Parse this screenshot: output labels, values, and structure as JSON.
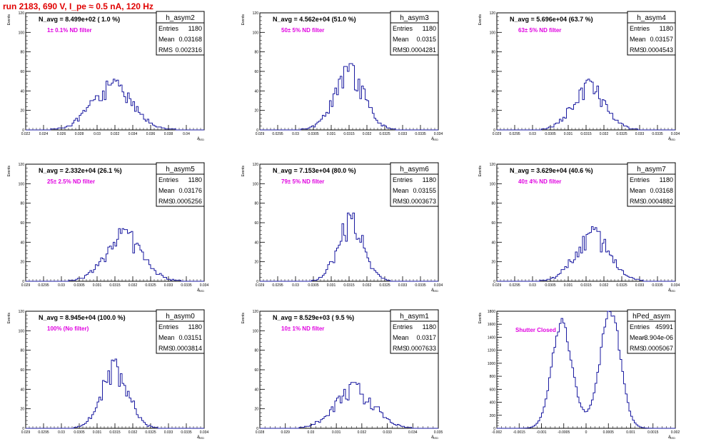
{
  "header": {
    "title": "run 2183,   690 V, I_pe ≈ 0.5 nA, 120 Hz"
  },
  "chart_data": [
    {
      "type": "bar",
      "hist": "h_asym2",
      "navg": "N_avg = 8.499e+02 ( 1.0 %)",
      "note": "1± 0.1% ND filter",
      "stats": [
        [
          "Entries",
          "1180"
        ],
        [
          "Mean",
          "0.03168"
        ],
        [
          "RMS",
          "0.002316"
        ]
      ],
      "xlim": [
        0.022,
        0.042
      ],
      "ylim": [
        0,
        120
      ],
      "mean": 0.03168,
      "rms": 0.002316,
      "peak": 52,
      "xticks": [
        "0.022",
        "0.024",
        "0.026",
        "0.028",
        "0.03",
        "0.032",
        "0.034",
        "0.036",
        "0.038",
        "0.04"
      ],
      "yticks": [
        "0",
        "20",
        "40",
        "60",
        "80",
        "100",
        "120"
      ],
      "ylabel": "Events",
      "xlabel": "A_LED"
    },
    {
      "type": "bar",
      "hist": "h_asym3",
      "navg": "N_avg = 4.562e+04 (51.0 %)",
      "note": "50± 5% ND filter",
      "stats": [
        [
          "Entries",
          "1180"
        ],
        [
          "Mean",
          "0.0315"
        ],
        [
          "RMS",
          "0.0004281"
        ]
      ],
      "xlim": [
        0.029,
        0.034
      ],
      "ylim": [
        0,
        120
      ],
      "mean": 0.0315,
      "rms": 0.0004281,
      "peak": 69,
      "xticks": [
        "0.029",
        "0.0295",
        "0.03",
        "0.0305",
        "0.031",
        "0.0315",
        "0.032",
        "0.0325",
        "0.033",
        "0.0335",
        "0.034"
      ],
      "yticks": [
        "0",
        "20",
        "40",
        "60",
        "80",
        "100",
        "120"
      ],
      "ylabel": "Events",
      "xlabel": "A_LED"
    },
    {
      "type": "bar",
      "hist": "h_asym4",
      "navg": "N_avg = 5.696e+04 (63.7 %)",
      "note": "63± 5% ND filter",
      "stats": [
        [
          "Entries",
          "1180"
        ],
        [
          "Mean",
          "0.03157"
        ],
        [
          "RMS",
          "0.0004543"
        ]
      ],
      "xlim": [
        0.029,
        0.034
      ],
      "ylim": [
        0,
        120
      ],
      "mean": 0.03157,
      "rms": 0.0004543,
      "peak": 53,
      "xticks": [
        "0.029",
        "0.0295",
        "0.03",
        "0.0305",
        "0.031",
        "0.0315",
        "0.032",
        "0.0325",
        "0.033",
        "0.0335",
        "0.034"
      ],
      "yticks": [
        "0",
        "20",
        "40",
        "60",
        "80",
        "100",
        "120"
      ],
      "ylabel": "Events",
      "xlabel": "A_LED"
    },
    {
      "type": "bar",
      "hist": "h_asym5",
      "navg": "N_avg = 2.332e+04 (26.1 %)",
      "note": "25± 2.5% ND filter",
      "stats": [
        [
          "Entries",
          "1180"
        ],
        [
          "Mean",
          "0.03176"
        ],
        [
          "RMS",
          "0.0005256"
        ]
      ],
      "xlim": [
        0.029,
        0.034
      ],
      "ylim": [
        0,
        120
      ],
      "mean": 0.03176,
      "rms": 0.0005256,
      "peak": 55,
      "xticks": [
        "0.029",
        "0.0295",
        "0.03",
        "0.0305",
        "0.031",
        "0.0315",
        "0.032",
        "0.0325",
        "0.033",
        "0.0335",
        "0.034"
      ],
      "yticks": [
        "0",
        "20",
        "40",
        "60",
        "80",
        "100",
        "120"
      ],
      "ylabel": "Events",
      "xlabel": "A_LED"
    },
    {
      "type": "bar",
      "hist": "h_asym6",
      "navg": "N_avg = 7.153e+04 (80.0 %)",
      "note": "79± 5% ND filter",
      "stats": [
        [
          "Entries",
          "1180"
        ],
        [
          "Mean",
          "0.03155"
        ],
        [
          "RMS",
          "0.0003673"
        ]
      ],
      "xlim": [
        0.029,
        0.034
      ],
      "ylim": [
        0,
        120
      ],
      "mean": 0.03155,
      "rms": 0.0003673,
      "peak": 72,
      "xticks": [
        "0.029",
        "0.0295",
        "0.03",
        "0.0305",
        "0.031",
        "0.0315",
        "0.032",
        "0.0325",
        "0.033",
        "0.0335",
        "0.034"
      ],
      "yticks": [
        "0",
        "20",
        "40",
        "60",
        "80",
        "100",
        "120"
      ],
      "ylabel": "Events",
      "xlabel": "A_LED"
    },
    {
      "type": "bar",
      "hist": "h_asym7",
      "navg": "N_avg = 3.629e+04 (40.6 %)",
      "note": "40± 4% ND filter",
      "stats": [
        [
          "Entries",
          "1180"
        ],
        [
          "Mean",
          "0.03168"
        ],
        [
          "RMS",
          "0.0004882"
        ]
      ],
      "xlim": [
        0.029,
        0.034
      ],
      "ylim": [
        0,
        120
      ],
      "mean": 0.03168,
      "rms": 0.0004882,
      "peak": 56,
      "xticks": [
        "0.029",
        "0.0295",
        "0.03",
        "0.0305",
        "0.031",
        "0.0315",
        "0.032",
        "0.0325",
        "0.033",
        "0.0335",
        "0.034"
      ],
      "yticks": [
        "0",
        "20",
        "40",
        "60",
        "80",
        "100",
        "120"
      ],
      "ylabel": "Events",
      "xlabel": "A_LED"
    },
    {
      "type": "bar",
      "hist": "h_asym0",
      "navg": "N_avg = 8.945e+04 (100.0 %)",
      "note": "100% (No filter)",
      "stats": [
        [
          "Entries",
          "1180"
        ],
        [
          "Mean",
          "0.03151"
        ],
        [
          "RMS",
          "0.0003814"
        ]
      ],
      "xlim": [
        0.029,
        0.034
      ],
      "ylim": [
        0,
        120
      ],
      "mean": 0.03151,
      "rms": 0.0003814,
      "peak": 73,
      "xticks": [
        "0.029",
        "0.0295",
        "0.03",
        "0.0305",
        "0.031",
        "0.0315",
        "0.032",
        "0.0325",
        "0.033",
        "0.0335",
        "0.034"
      ],
      "yticks": [
        "0",
        "20",
        "40",
        "60",
        "80",
        "100",
        "120"
      ],
      "ylabel": "Events",
      "xlabel": "A_LED"
    },
    {
      "type": "bar",
      "hist": "h_asym1",
      "navg": "N_avg = 8.529e+03 ( 9.5 %)",
      "note": "10± 1% ND filter",
      "stats": [
        [
          "Entries",
          "1180"
        ],
        [
          "Mean",
          "0.0317"
        ],
        [
          "RMS",
          "0.0007633"
        ]
      ],
      "xlim": [
        0.028,
        0.035
      ],
      "ylim": [
        0,
        120
      ],
      "mean": 0.0317,
      "rms": 0.0007633,
      "peak": 48,
      "xticks": [
        "0.028",
        "0.029",
        "0.03",
        "0.031",
        "0.032",
        "0.033",
        "0.034",
        "0.035"
      ],
      "yticks": [
        "0",
        "20",
        "40",
        "60",
        "80",
        "100",
        "120"
      ],
      "ylabel": "Events",
      "xlabel": "A_LED"
    },
    {
      "type": "bar",
      "hist": "hPed_asym",
      "navg": "",
      "note": "Shutter Closed",
      "stats": [
        [
          "Entries",
          "45991"
        ],
        [
          "Mean",
          "-3.904e-06"
        ],
        [
          "RMS",
          "0.0005067"
        ]
      ],
      "xlim": [
        -0.002,
        0.002
      ],
      "ylim": [
        0,
        1800
      ],
      "bimodal": true,
      "peaks": [
        -0.00055,
        0.00055
      ],
      "peakHeights": [
        1560,
        1760
      ],
      "width": 0.00022,
      "xticks": [
        "-0.002",
        "-0.0015",
        "-0.001",
        "-0.0005",
        "0",
        "0.0005",
        "0.001",
        "0.0015",
        "0.002"
      ],
      "yticks": [
        "0",
        "200",
        "400",
        "600",
        "800",
        "1000",
        "1200",
        "1400",
        "1600",
        "1800"
      ],
      "ylabel": "Events",
      "xlabel": "A_LED"
    }
  ]
}
